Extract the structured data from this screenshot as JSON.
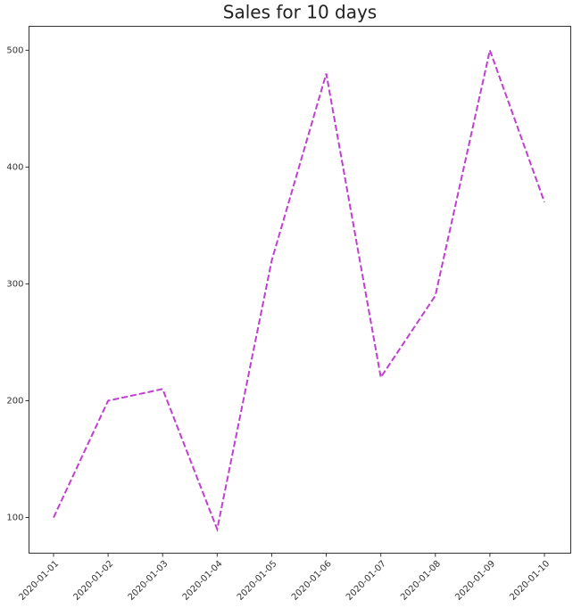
{
  "chart_data": {
    "type": "line",
    "title": "Sales for 10 days",
    "categories": [
      "2020-01-01",
      "2020-01-02",
      "2020-01-03",
      "2020-01-04",
      "2020-01-05",
      "2020-01-06",
      "2020-01-07",
      "2020-01-08",
      "2020-01-09",
      "2020-01-10"
    ],
    "values": [
      100,
      200,
      210,
      90,
      320,
      480,
      220,
      290,
      500,
      370
    ],
    "color": "#c03fd0",
    "line_style": "dashed",
    "ylim": [
      69.5,
      520.5
    ],
    "yticks": [
      100,
      200,
      300,
      400,
      500
    ],
    "grid": false
  }
}
